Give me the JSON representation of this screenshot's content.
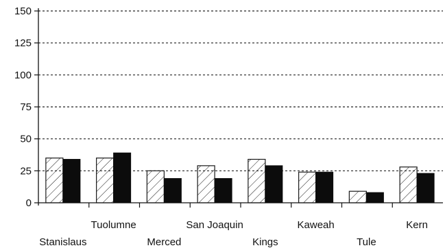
{
  "chart_data": {
    "type": "bar",
    "title": "",
    "xlabel": "",
    "ylabel": "",
    "ylim": [
      0,
      150
    ],
    "yticks": [
      0,
      25,
      50,
      75,
      100,
      125,
      150
    ],
    "yticklabels": [
      "0",
      "25",
      "50",
      "75",
      "100",
      "125",
      "150"
    ],
    "grid": "dashed horizontal",
    "legend": "none",
    "categories": [
      "Stanislaus",
      "Tuolumne",
      "Merced",
      "San Joaquin",
      "Kings",
      "Kaweah",
      "Tule",
      "Kern"
    ],
    "category_label_rows": [
      "lower",
      "upper",
      "lower",
      "upper",
      "lower",
      "upper",
      "lower",
      "upper"
    ],
    "series": [
      {
        "pattern": "hatched",
        "values": [
          35,
          35,
          25,
          29,
          34,
          24,
          9,
          28
        ]
      },
      {
        "pattern": "solid",
        "values": [
          34,
          39,
          19,
          19,
          29,
          24,
          8,
          23
        ]
      }
    ],
    "colors": {
      "solid": "#0c0c0c",
      "hatch": "#1a1a1a",
      "axis": "#111111"
    }
  }
}
